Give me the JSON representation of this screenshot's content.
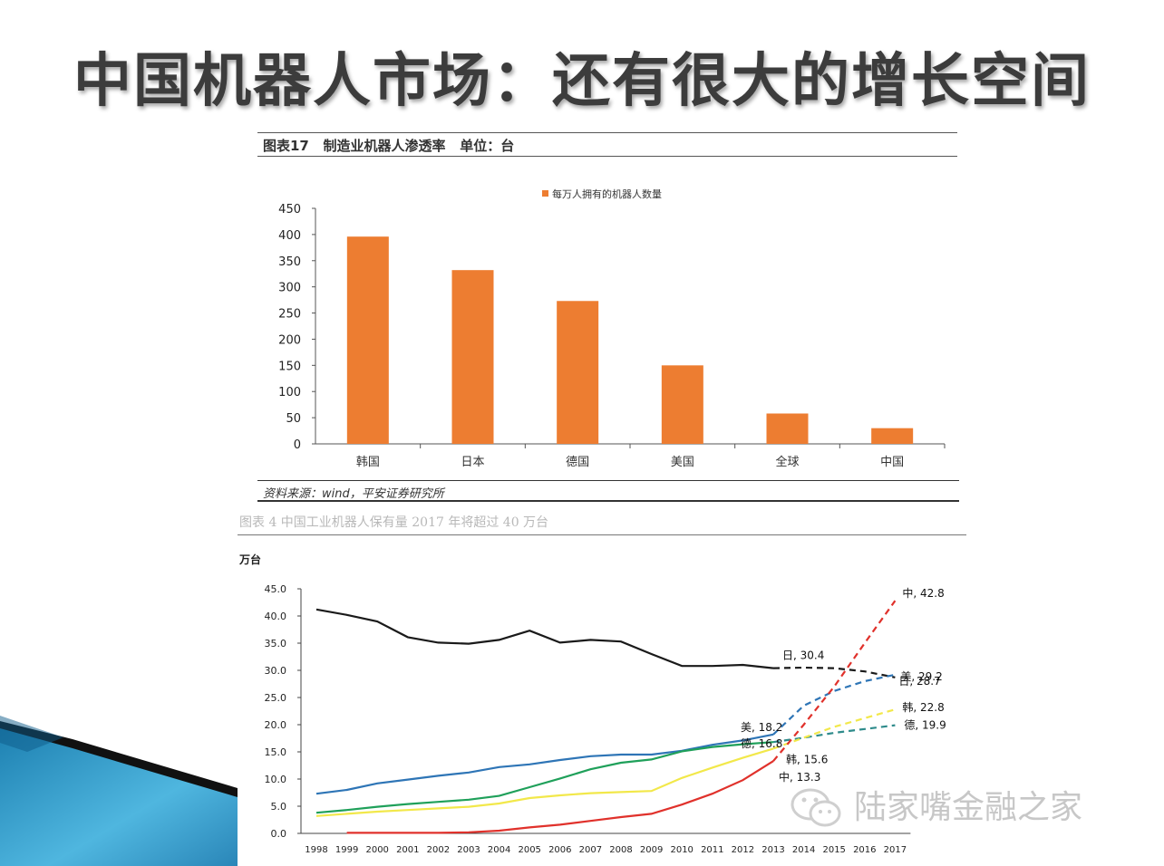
{
  "slide": {
    "title": "中国机器人市场：还有很大的增长空间",
    "watermark": "陆家嘴金融之家"
  },
  "fig1": {
    "caption": "图表17   制造业机器人渗透率   单位：台",
    "source": "资料来源：wind，平安证券研究所"
  },
  "fig2": {
    "caption": "图表 4 中国工业机器人保有量 2017 年将超过 40 万台"
  },
  "colors": {
    "bar": "#ed7d31",
    "japan": "#1a1a1a",
    "usa": "#2e75b6",
    "germany": "#1fa05a",
    "korea": "#f2e84a",
    "china": "#e0312b",
    "germany_forecast": "#2e8b8b"
  },
  "chart_data": [
    {
      "type": "bar",
      "legend": "每万人拥有的机器人数量",
      "legend_position": "top-center",
      "categories": [
        "韩国",
        "日本",
        "德国",
        "美国",
        "全球",
        "中国"
      ],
      "values": [
        396,
        332,
        273,
        150,
        58,
        30
      ],
      "ylim": [
        0,
        450
      ],
      "yticks": [
        "0",
        "50",
        "100",
        "150",
        "200",
        "250",
        "300",
        "350",
        "400",
        "450"
      ],
      "grid": false
    },
    {
      "type": "line",
      "ylabel": "万台",
      "ylim": [
        0,
        45
      ],
      "yticks": [
        "0.0",
        "5.0",
        "10.0",
        "15.0",
        "20.0",
        "25.0",
        "30.0",
        "35.0",
        "40.0",
        "45.0"
      ],
      "x": [
        "1998",
        "1999",
        "2000",
        "2001",
        "2002",
        "2003",
        "2004",
        "2005",
        "2006",
        "2007",
        "2008",
        "2009",
        "2010",
        "2011",
        "2012",
        "2013",
        "2014",
        "2015",
        "2016",
        "2017"
      ],
      "grid": false,
      "series": [
        {
          "key": "japan",
          "actual": [
            [
              1998,
              41.2
            ],
            [
              1999,
              40.2
            ],
            [
              2000,
              39.0
            ],
            [
              2001,
              36.1
            ],
            [
              2002,
              35.1
            ],
            [
              2003,
              34.9
            ],
            [
              2004,
              35.6
            ],
            [
              2005,
              37.3
            ],
            [
              2006,
              35.1
            ],
            [
              2007,
              35.6
            ],
            [
              2008,
              35.3
            ],
            [
              2009,
              33.0
            ],
            [
              2010,
              30.8
            ],
            [
              2011,
              30.8
            ],
            [
              2012,
              31.0
            ],
            [
              2013,
              30.4
            ]
          ],
          "forecast": [
            [
              2013,
              30.4
            ],
            [
              2014,
              30.5
            ],
            [
              2015,
              30.4
            ],
            [
              2016,
              29.8
            ],
            [
              2017,
              28.7
            ]
          ]
        },
        {
          "key": "usa",
          "actual": [
            [
              1998,
              7.3
            ],
            [
              1999,
              8.0
            ],
            [
              2000,
              9.2
            ],
            [
              2001,
              9.9
            ],
            [
              2002,
              10.6
            ],
            [
              2003,
              11.2
            ],
            [
              2004,
              12.2
            ],
            [
              2005,
              12.7
            ],
            [
              2006,
              13.5
            ],
            [
              2007,
              14.2
            ],
            [
              2008,
              14.5
            ],
            [
              2009,
              14.5
            ],
            [
              2010,
              15.2
            ],
            [
              2011,
              16.3
            ],
            [
              2012,
              17.1
            ],
            [
              2013,
              18.2
            ]
          ],
          "forecast": [
            [
              2013,
              18.2
            ],
            [
              2014,
              23.5
            ],
            [
              2015,
              26.2
            ],
            [
              2016,
              28.0
            ],
            [
              2017,
              29.2
            ]
          ]
        },
        {
          "key": "germany",
          "actual": [
            [
              1998,
              3.8
            ],
            [
              1999,
              4.3
            ],
            [
              2000,
              4.9
            ],
            [
              2001,
              5.4
            ],
            [
              2002,
              5.8
            ],
            [
              2003,
              6.2
            ],
            [
              2004,
              6.9
            ],
            [
              2005,
              8.5
            ],
            [
              2006,
              10.1
            ],
            [
              2007,
              11.8
            ],
            [
              2008,
              13.0
            ],
            [
              2009,
              13.6
            ],
            [
              2010,
              15.1
            ],
            [
              2011,
              15.9
            ],
            [
              2012,
              16.4
            ],
            [
              2013,
              16.8
            ]
          ],
          "forecast": [
            [
              2013,
              16.8
            ],
            [
              2014,
              17.6
            ],
            [
              2015,
              18.5
            ],
            [
              2016,
              19.2
            ],
            [
              2017,
              19.9
            ]
          ]
        },
        {
          "key": "korea",
          "actual": [
            [
              1998,
              3.2
            ],
            [
              1999,
              3.6
            ],
            [
              2000,
              4.0
            ],
            [
              2001,
              4.3
            ],
            [
              2002,
              4.6
            ],
            [
              2003,
              4.9
            ],
            [
              2004,
              5.5
            ],
            [
              2005,
              6.5
            ],
            [
              2006,
              7.0
            ],
            [
              2007,
              7.4
            ],
            [
              2008,
              7.6
            ],
            [
              2009,
              7.8
            ],
            [
              2010,
              10.2
            ],
            [
              2011,
              12.1
            ],
            [
              2012,
              13.9
            ],
            [
              2013,
              15.6
            ]
          ],
          "forecast": [
            [
              2013,
              15.6
            ],
            [
              2014,
              17.6
            ],
            [
              2015,
              19.6
            ],
            [
              2016,
              21.2
            ],
            [
              2017,
              22.8
            ]
          ]
        },
        {
          "key": "china",
          "actual": [
            [
              1999,
              0.1
            ],
            [
              2000,
              0.1
            ],
            [
              2001,
              0.1
            ],
            [
              2002,
              0.1
            ],
            [
              2003,
              0.2
            ],
            [
              2004,
              0.5
            ],
            [
              2005,
              1.1
            ],
            [
              2006,
              1.6
            ],
            [
              2007,
              2.3
            ],
            [
              2008,
              3.0
            ],
            [
              2009,
              3.6
            ],
            [
              2010,
              5.3
            ],
            [
              2011,
              7.3
            ],
            [
              2012,
              9.8
            ],
            [
              2013,
              13.3
            ]
          ],
          "forecast": [
            [
              2013,
              13.3
            ],
            [
              2014,
              20.0
            ],
            [
              2015,
              27.0
            ],
            [
              2016,
              35.0
            ],
            [
              2017,
              42.8
            ]
          ]
        }
      ],
      "annotations": [
        {
          "key": "japan",
          "text": "日, 30.4",
          "at": [
            2013,
            30.4
          ]
        },
        {
          "key": "usa",
          "text": "美, 29.2",
          "at": [
            2017,
            29.2
          ]
        },
        {
          "key": "japan",
          "text": "日, 28.7",
          "at": [
            2017,
            28.7
          ]
        },
        {
          "key": "korea",
          "text": "韩, 22.8",
          "at": [
            2017,
            22.8
          ]
        },
        {
          "key": "germany",
          "text": "德, 19.9",
          "at": [
            2017,
            19.9
          ]
        },
        {
          "key": "usa",
          "text": "美, 18.2",
          "at": [
            2013,
            18.2
          ]
        },
        {
          "key": "germany",
          "text": "德, 16.8",
          "at": [
            2013,
            16.8
          ]
        },
        {
          "key": "korea",
          "text": "韩, 15.6",
          "at": [
            2013,
            15.6
          ]
        },
        {
          "key": "china",
          "text": "中, 13.3",
          "at": [
            2013,
            13.3
          ]
        },
        {
          "key": "china",
          "text": "中, 42.8",
          "at": [
            2017,
            42.8
          ]
        }
      ]
    }
  ]
}
